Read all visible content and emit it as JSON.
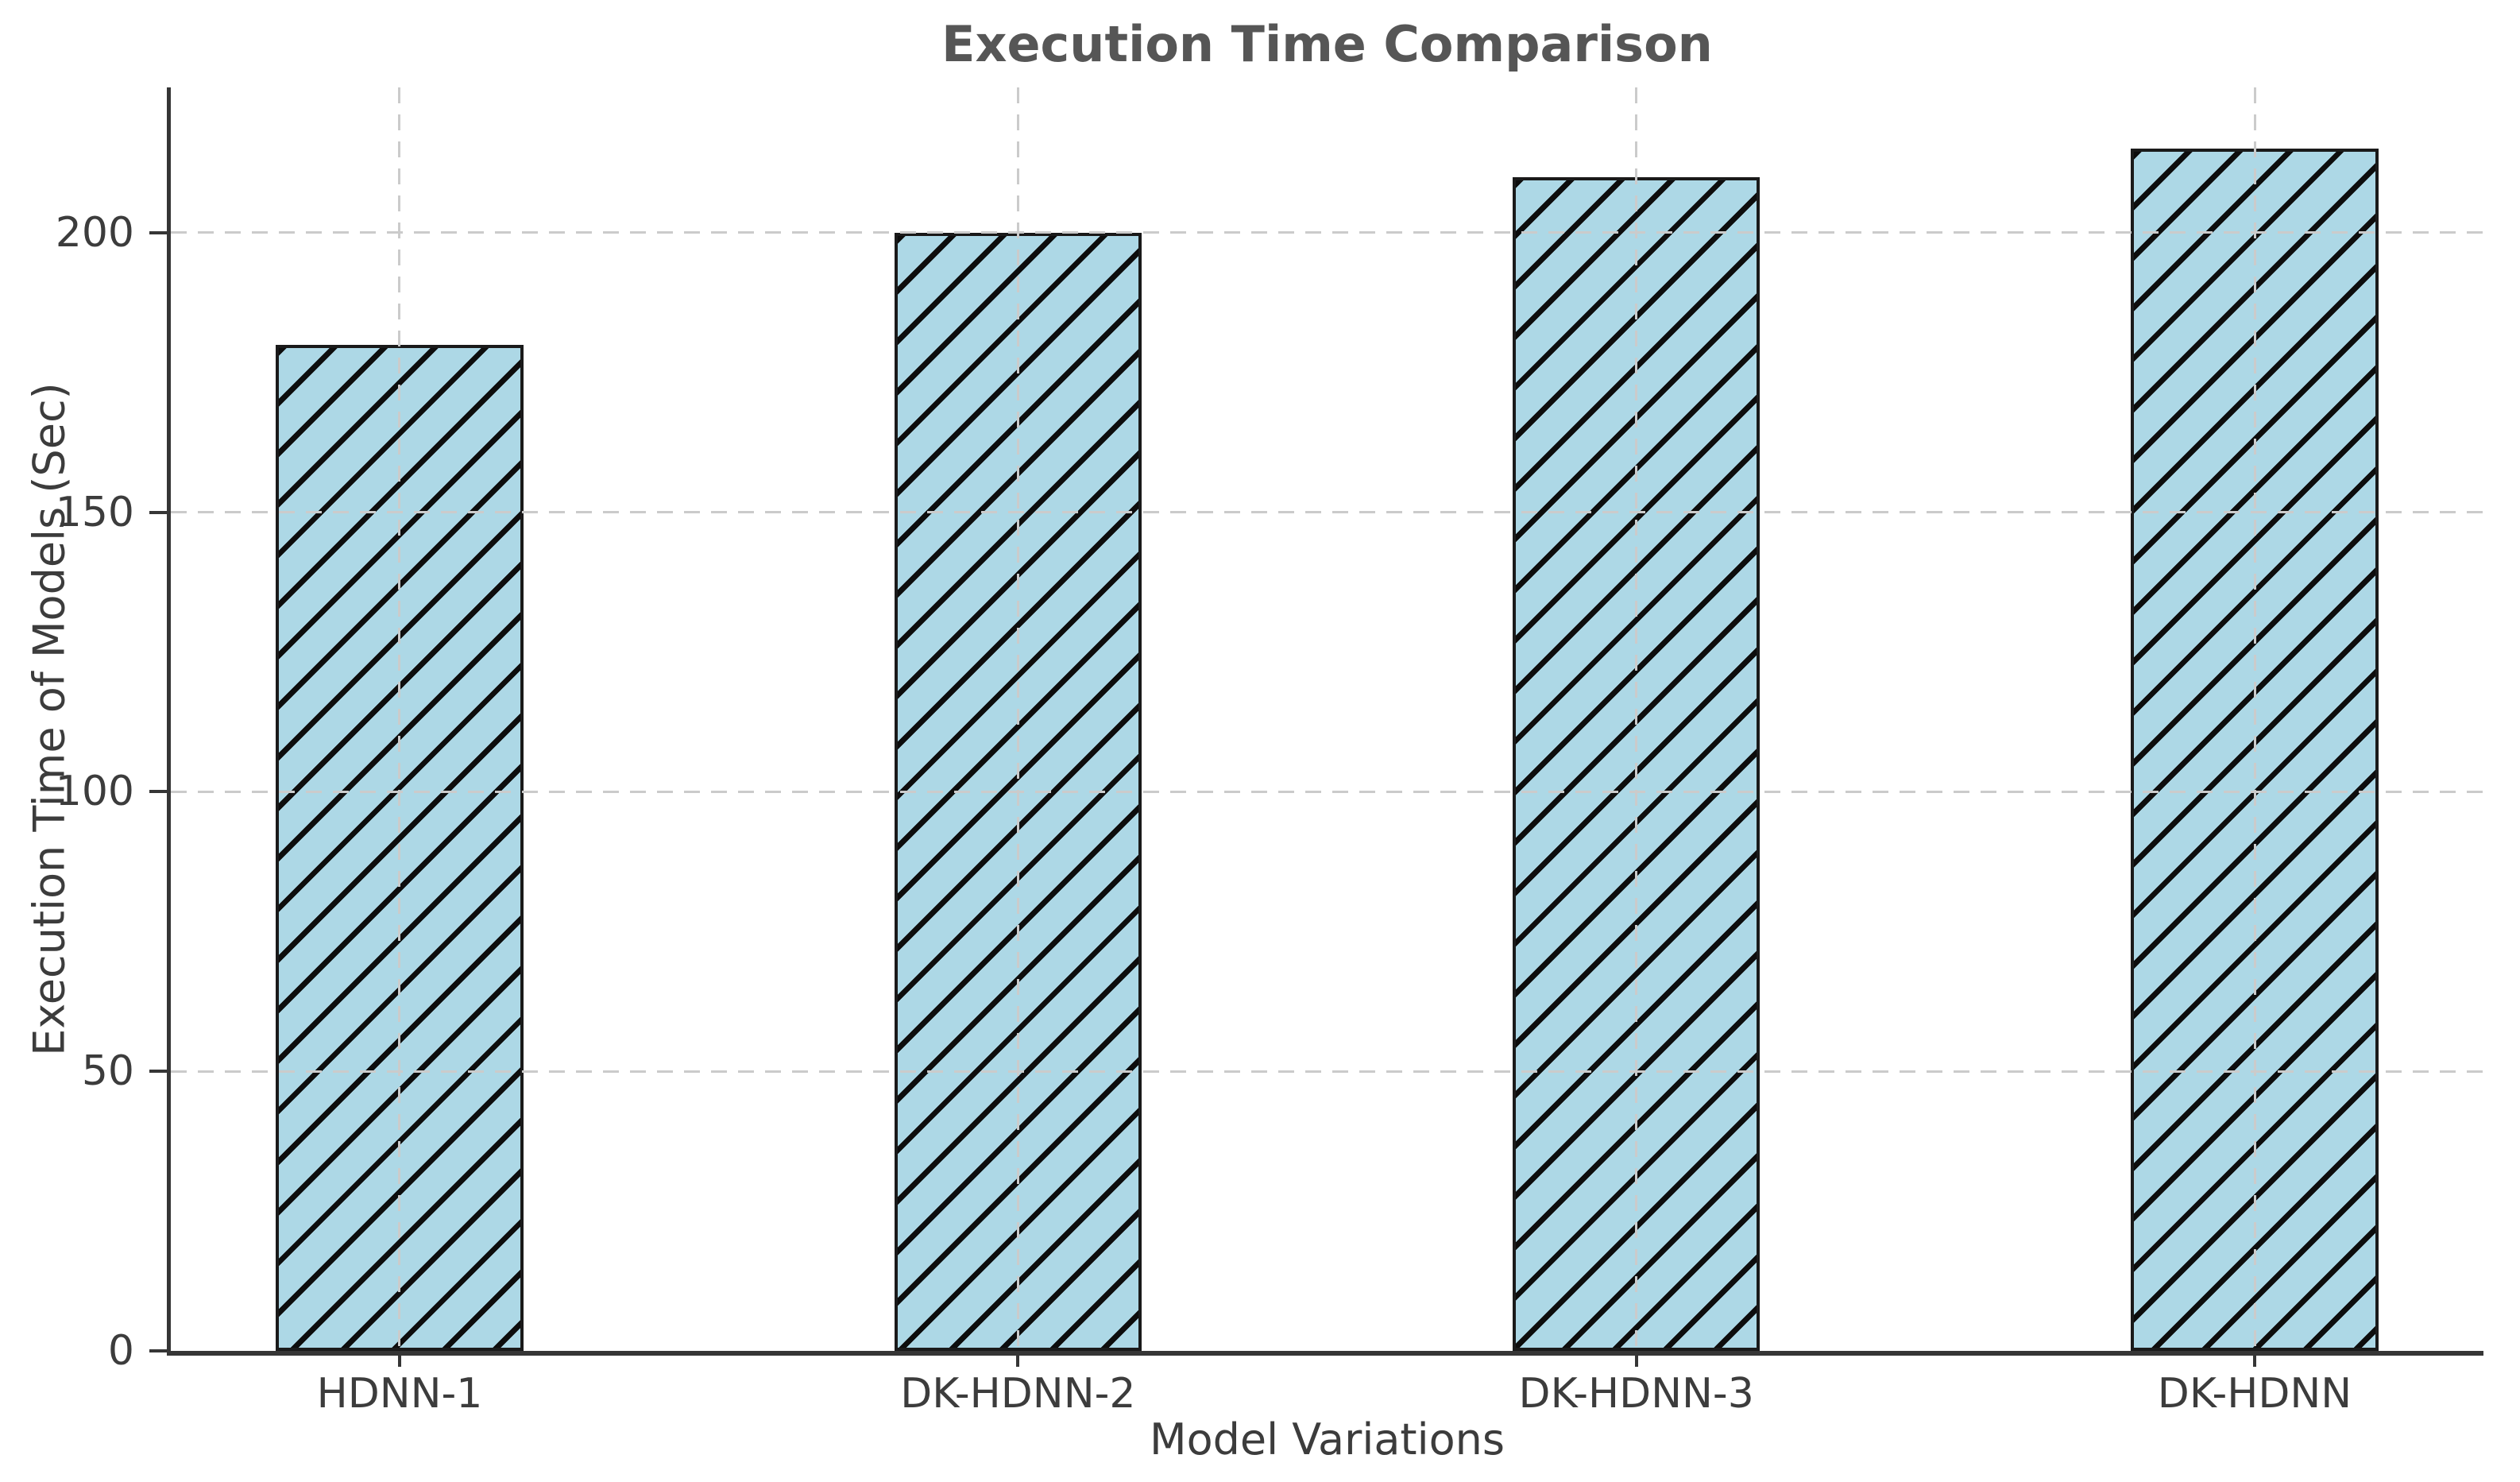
{
  "chart_data": {
    "type": "bar",
    "title": "Execution Time Comparison",
    "xlabel": "Model Variations",
    "ylabel": "Execution Time of Models (Sec)",
    "categories": [
      "HDNN-1",
      "DK-HDNN-2",
      "DK-HDNN-3",
      "DK-HDNN"
    ],
    "values": [
      180,
      200,
      210,
      215
    ],
    "yticks": [
      0,
      50,
      100,
      150,
      200
    ],
    "ylim": [
      0,
      226
    ],
    "xlim": [
      -0.37,
      3.37
    ],
    "bar_width": 0.4,
    "grid": true,
    "grid_style": "dashed",
    "hatch": "/",
    "legend": "none",
    "colors": {
      "background": "#ffffff",
      "bar_fill": "#ADD8E6",
      "bar_edge": "#1a1a1a",
      "hatch": "#0d0d0d",
      "grid": "#cbcbcb",
      "spine": "#363636",
      "text": "#3c3c3c",
      "title": "#565656"
    }
  }
}
